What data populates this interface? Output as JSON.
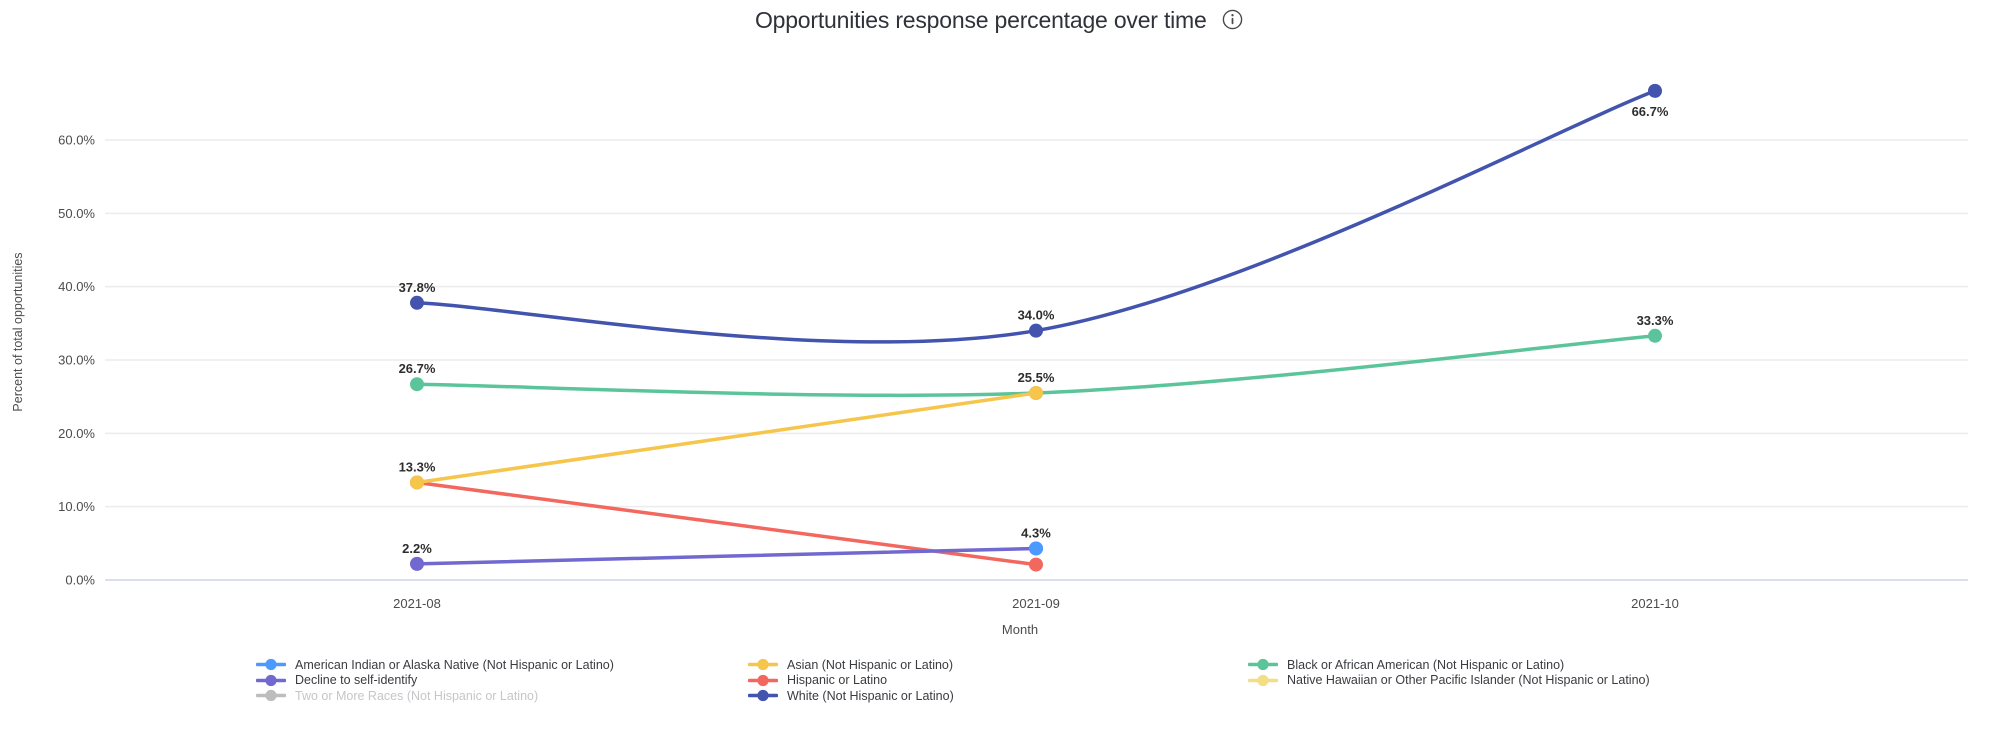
{
  "header": {
    "title": "Opportunities response percentage over time"
  },
  "chart_data": {
    "type": "line",
    "title": "Opportunities response percentage over time",
    "xlabel": "Month",
    "ylabel": "Percent of total opportunities",
    "categories": [
      "2021-08",
      "2021-09",
      "2021-10"
    ],
    "y_ticks": [
      "0.0%",
      "10.0%",
      "20.0%",
      "30.0%",
      "40.0%",
      "50.0%",
      "60.0%"
    ],
    "ylim": [
      0,
      66.7
    ],
    "grid": "horizontal",
    "legend_position": "bottom",
    "series": [
      {
        "name": "American Indian or Alaska Native (Not Hispanic or Latino)",
        "color": "#4C9AFF",
        "visible": true,
        "dimmed": false,
        "points": [
          {
            "x": "2021-09",
            "y": 4.3,
            "label": "4.3%"
          }
        ]
      },
      {
        "name": "Asian (Not Hispanic or Latino)",
        "color": "#F6C54B",
        "visible": true,
        "dimmed": false,
        "points": [
          {
            "x": "2021-08",
            "y": 13.3,
            "label": "13.3%"
          },
          {
            "x": "2021-09",
            "y": 25.5,
            "label": "25.5%"
          }
        ]
      },
      {
        "name": "Black or African American (Not Hispanic or Latino)",
        "color": "#5CC49B",
        "visible": true,
        "dimmed": false,
        "points": [
          {
            "x": "2021-08",
            "y": 26.7,
            "label": "26.7%"
          },
          {
            "x": "2021-09",
            "y": 25.5,
            "label": ""
          },
          {
            "x": "2021-10",
            "y": 33.3,
            "label": "33.3%"
          }
        ]
      },
      {
        "name": "Decline to self-identify",
        "color": "#7168D0",
        "visible": true,
        "dimmed": false,
        "points": [
          {
            "x": "2021-08",
            "y": 2.2,
            "label": "2.2%"
          },
          {
            "x": "2021-09",
            "y": 4.3,
            "label": ""
          }
        ]
      },
      {
        "name": "Hispanic or Latino",
        "color": "#F2685E",
        "visible": true,
        "dimmed": false,
        "points": [
          {
            "x": "2021-08",
            "y": 13.3,
            "label": ""
          },
          {
            "x": "2021-09",
            "y": 2.1,
            "label": ""
          }
        ]
      },
      {
        "name": "Native Hawaiian or Other Pacific Islander (Not Hispanic or Latino)",
        "color": "#F2DE85",
        "visible": true,
        "dimmed": false,
        "points": []
      },
      {
        "name": "Two or More Races (Not Hispanic or Latino)",
        "color": "#BDBDBD",
        "visible": false,
        "dimmed": true,
        "points": []
      },
      {
        "name": "White (Not Hispanic or Latino)",
        "color": "#4254AE",
        "visible": true,
        "dimmed": false,
        "points": [
          {
            "x": "2021-08",
            "y": 37.8,
            "label": "37.8%"
          },
          {
            "x": "2021-09",
            "y": 34.0,
            "label": "34.0%"
          },
          {
            "x": "2021-10",
            "y": 66.7,
            "label": "66.7%",
            "label_dx": -5,
            "label_dy": 36
          }
        ]
      }
    ],
    "colors": {
      "grid_line": "#ECECEE",
      "zero_line": "#CDD3E9",
      "tick_label": "#4C4C4C",
      "data_label": "#2E2E2E"
    }
  }
}
